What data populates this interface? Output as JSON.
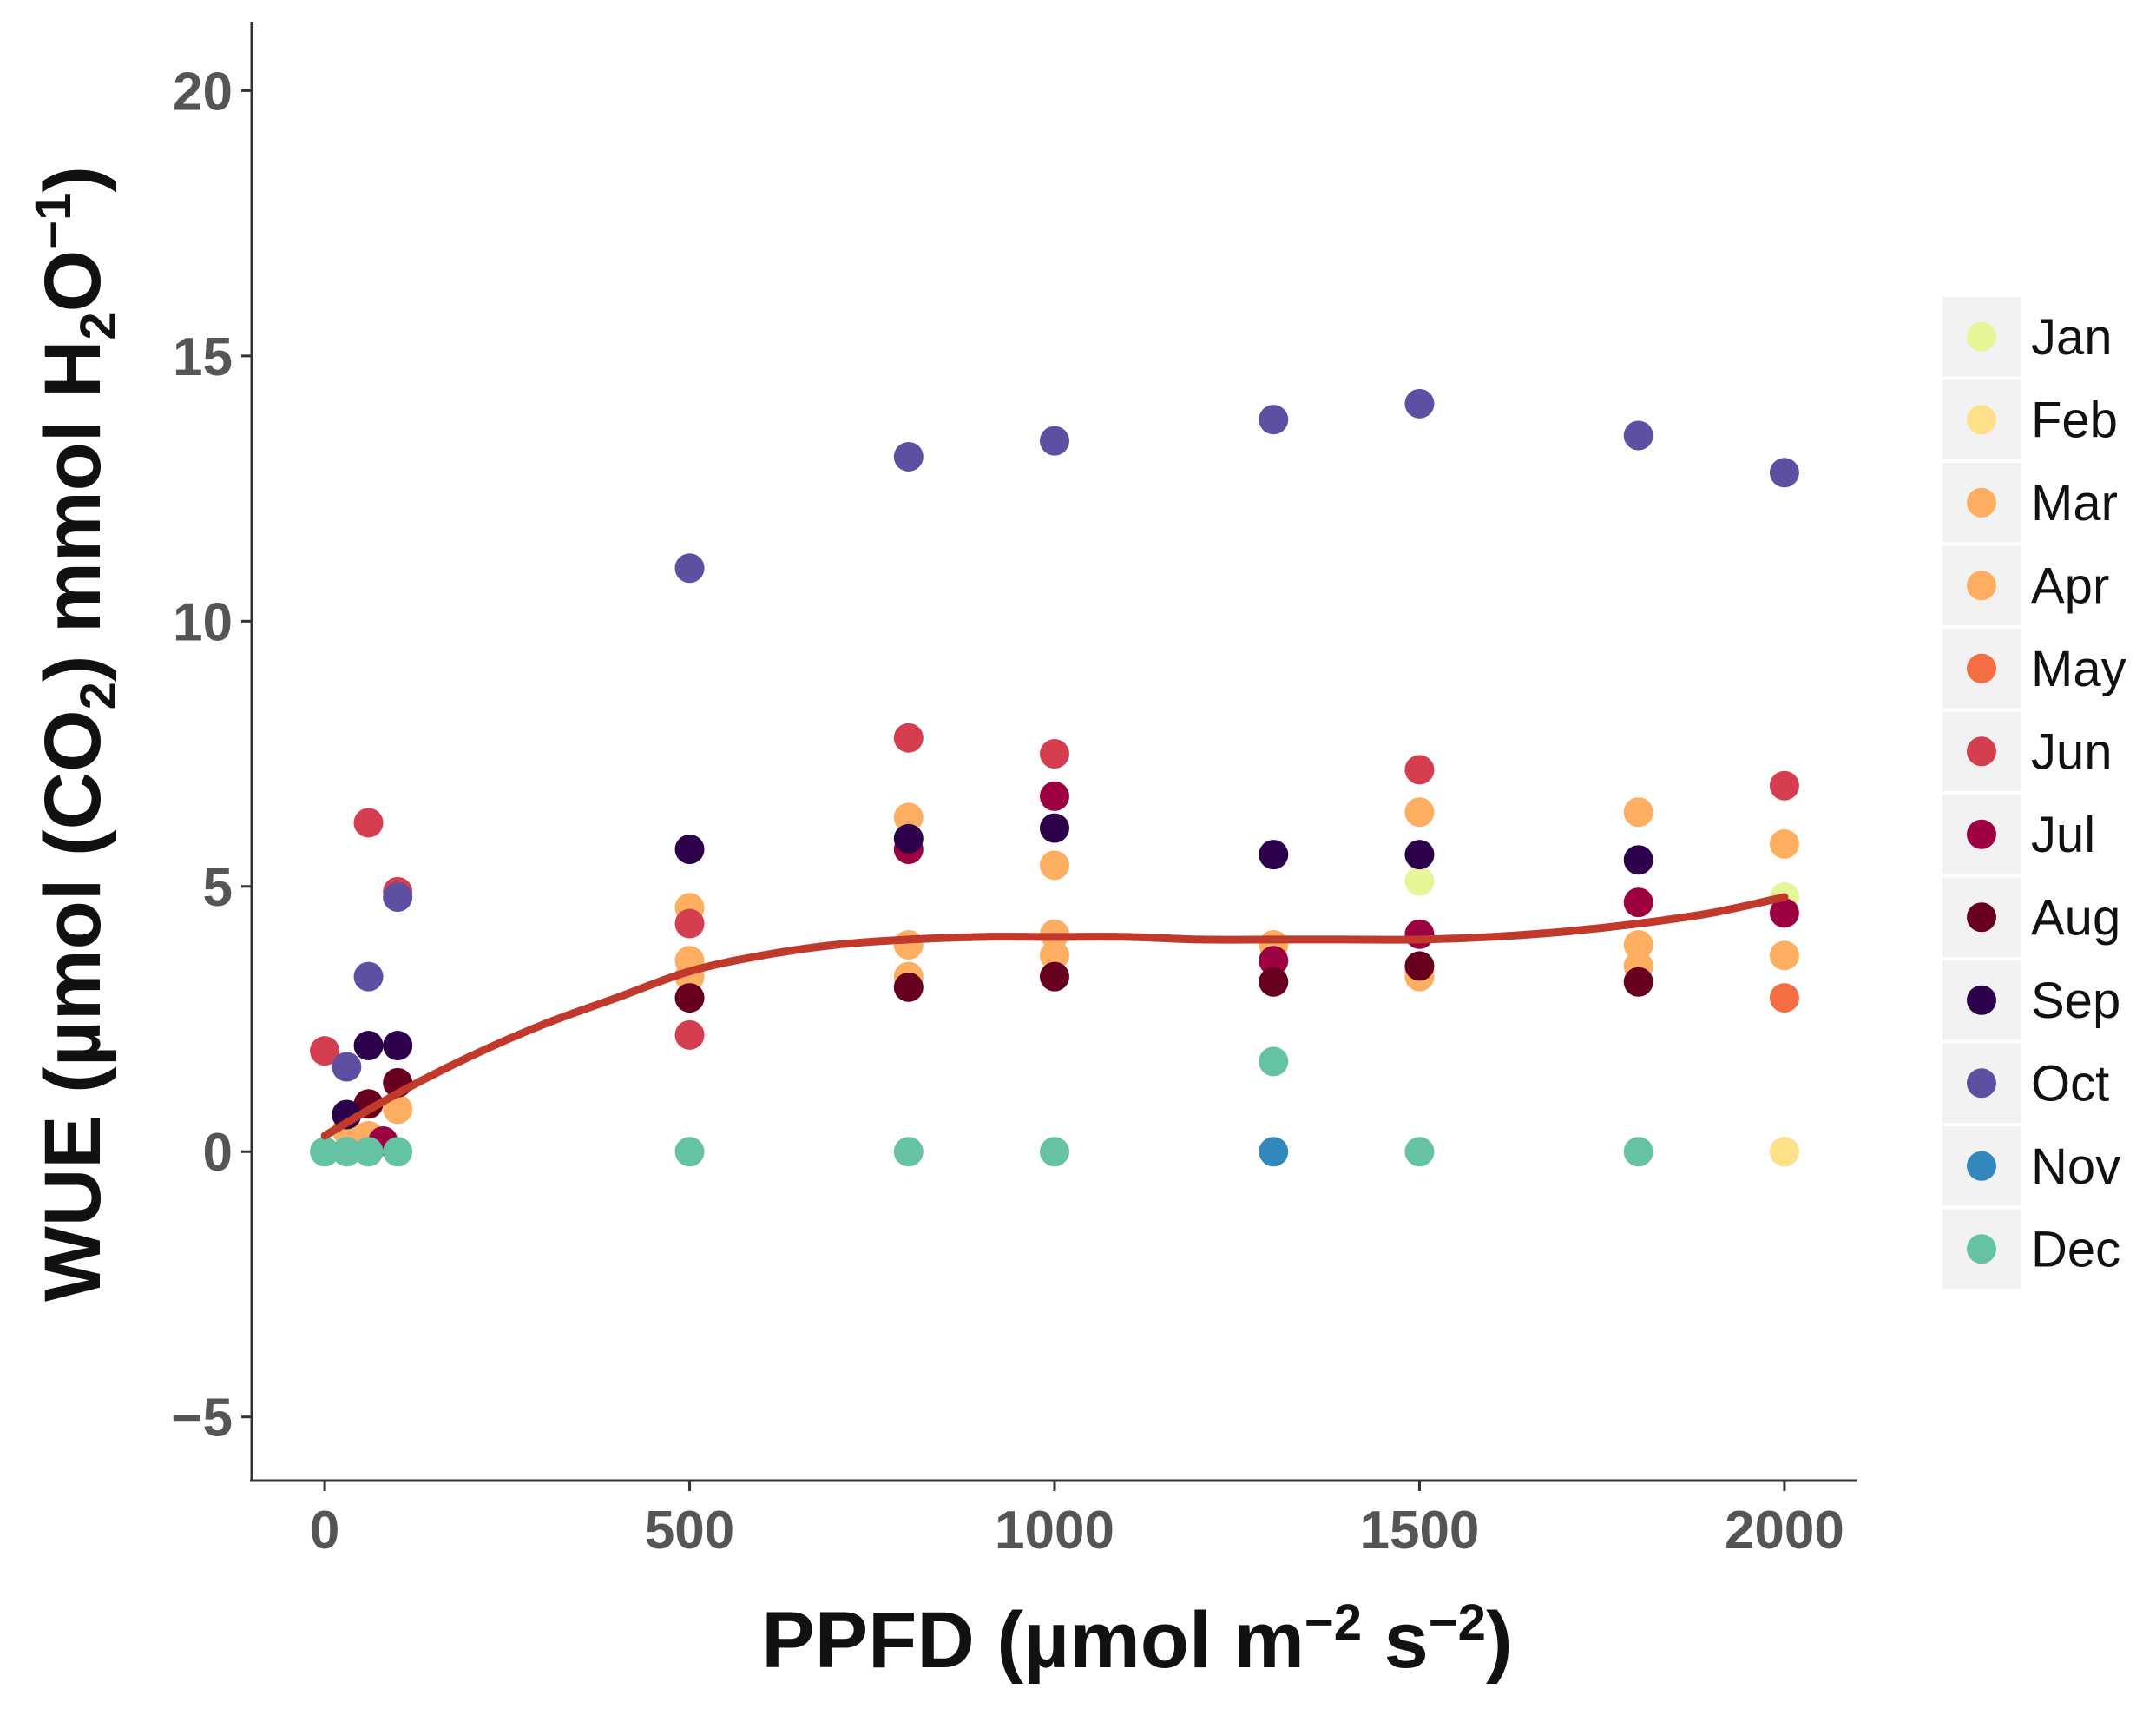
{
  "chart_data": {
    "type": "scatter",
    "title": "",
    "xlabel": {
      "main": "PPFD (µmol m",
      "sup1": "−2",
      "mid": " s",
      "sup2": "−2",
      "end": ")"
    },
    "ylabel": {
      "p1": "WUE (µmol (CO",
      "sub1": "2",
      "p2": ") mmol H",
      "sub2": "2",
      "p3": "O",
      "sup": "−1",
      "p4": ")"
    },
    "xlim": [
      -100,
      2100
    ],
    "ylim": [
      -6.2,
      21.3
    ],
    "xticks": [
      {
        "value": 0,
        "label": "0"
      },
      {
        "value": 500,
        "label": "500"
      },
      {
        "value": 1000,
        "label": "1000"
      },
      {
        "value": 1500,
        "label": "1500"
      },
      {
        "value": 2000,
        "label": "2000"
      }
    ],
    "yticks": [
      {
        "value": -5,
        "label": "−5"
      },
      {
        "value": 0,
        "label": "0"
      },
      {
        "value": 5,
        "label": "5"
      },
      {
        "value": 10,
        "label": "10"
      },
      {
        "value": 15,
        "label": "15"
      },
      {
        "value": 20,
        "label": "20"
      }
    ],
    "legend_position": "right",
    "series": [
      {
        "name": "Jan",
        "color": "#e6f598",
        "points": [
          [
            1500,
            5.1
          ],
          [
            2000,
            4.8
          ]
        ]
      },
      {
        "name": "Feb",
        "color": "#fee08b",
        "points": [
          [
            2000,
            0
          ]
        ]
      },
      {
        "name": "Mar",
        "color": "#fdae61",
        "points": [
          [
            60,
            0.3
          ],
          [
            100,
            0.8
          ],
          [
            500,
            4.6
          ],
          [
            500,
            3.6
          ],
          [
            800,
            6.3
          ],
          [
            800,
            3.9
          ],
          [
            1000,
            5.4
          ],
          [
            1000,
            4.1
          ],
          [
            1300,
            3.9
          ],
          [
            1500,
            6.4
          ],
          [
            1500,
            3.3
          ],
          [
            1800,
            6.4
          ],
          [
            1800,
            3.9
          ],
          [
            2000,
            5.8
          ],
          [
            2000,
            3.7
          ]
        ]
      },
      {
        "name": "Apr",
        "color": "#fdae61",
        "points": [
          [
            30,
            0.4
          ],
          [
            500,
            3.3
          ],
          [
            800,
            3.3
          ],
          [
            1000,
            3.7
          ],
          [
            1500,
            3.4
          ],
          [
            1800,
            3.5
          ]
        ]
      },
      {
        "name": "May",
        "color": "#f46d43",
        "points": [
          [
            2000,
            2.9
          ]
        ]
      },
      {
        "name": "Jun",
        "color": "#d53e4f",
        "points": [
          [
            0,
            1.9
          ],
          [
            60,
            6.2
          ],
          [
            100,
            4.9
          ],
          [
            500,
            4.3
          ],
          [
            500,
            2.2
          ],
          [
            800,
            7.8
          ],
          [
            1000,
            7.5
          ],
          [
            1500,
            7.2
          ],
          [
            2000,
            6.9
          ]
        ]
      },
      {
        "name": "Jul",
        "color": "#9e0142",
        "points": [
          [
            80,
            0.2
          ],
          [
            800,
            5.7
          ],
          [
            1000,
            6.7
          ],
          [
            1300,
            3.6
          ],
          [
            1500,
            4.1
          ],
          [
            1800,
            4.7
          ],
          [
            2000,
            4.5
          ]
        ]
      },
      {
        "name": "Aug",
        "color": "#67001f",
        "points": [
          [
            60,
            0.9
          ],
          [
            100,
            1.3
          ],
          [
            500,
            2.9
          ],
          [
            800,
            3.1
          ],
          [
            1000,
            3.3
          ],
          [
            1300,
            3.2
          ],
          [
            1500,
            3.5
          ],
          [
            1800,
            3.2
          ]
        ]
      },
      {
        "name": "Sep",
        "color": "#2d004b",
        "points": [
          [
            30,
            0.7
          ],
          [
            60,
            2.0
          ],
          [
            100,
            2.0
          ],
          [
            500,
            5.7
          ],
          [
            800,
            5.9
          ],
          [
            1000,
            6.1
          ],
          [
            1300,
            5.6
          ],
          [
            1500,
            5.6
          ],
          [
            1800,
            5.5
          ]
        ]
      },
      {
        "name": "Oct",
        "color": "#5e4fa2",
        "points": [
          [
            30,
            1.6
          ],
          [
            60,
            3.3
          ],
          [
            100,
            4.8
          ],
          [
            500,
            11.0
          ],
          [
            800,
            13.1
          ],
          [
            1000,
            13.4
          ],
          [
            1300,
            13.8
          ],
          [
            1500,
            14.1
          ],
          [
            1800,
            13.5
          ],
          [
            2000,
            12.8
          ]
        ]
      },
      {
        "name": "Nov",
        "color": "#3288bd",
        "points": [
          [
            1300,
            0
          ]
        ]
      },
      {
        "name": "Dec",
        "color": "#66c2a5",
        "points": [
          [
            0,
            0
          ],
          [
            30,
            0
          ],
          [
            60,
            0
          ],
          [
            100,
            0
          ],
          [
            500,
            0
          ],
          [
            800,
            0
          ],
          [
            1000,
            0
          ],
          [
            1300,
            1.7
          ],
          [
            1500,
            0
          ],
          [
            1800,
            0
          ]
        ]
      }
    ],
    "fit_line": {
      "color": "#c0392b",
      "points": [
        [
          0,
          0.3
        ],
        [
          100,
          1.1
        ],
        [
          200,
          1.8
        ],
        [
          300,
          2.4
        ],
        [
          400,
          2.9
        ],
        [
          500,
          3.4
        ],
        [
          600,
          3.7
        ],
        [
          700,
          3.9
        ],
        [
          800,
          4.0
        ],
        [
          900,
          4.05
        ],
        [
          1000,
          4.05
        ],
        [
          1100,
          4.05
        ],
        [
          1200,
          4.0
        ],
        [
          1300,
          4.0
        ],
        [
          1400,
          4.0
        ],
        [
          1500,
          4.0
        ],
        [
          1600,
          4.05
        ],
        [
          1700,
          4.15
        ],
        [
          1800,
          4.3
        ],
        [
          1900,
          4.5
        ],
        [
          2000,
          4.8
        ]
      ]
    }
  }
}
